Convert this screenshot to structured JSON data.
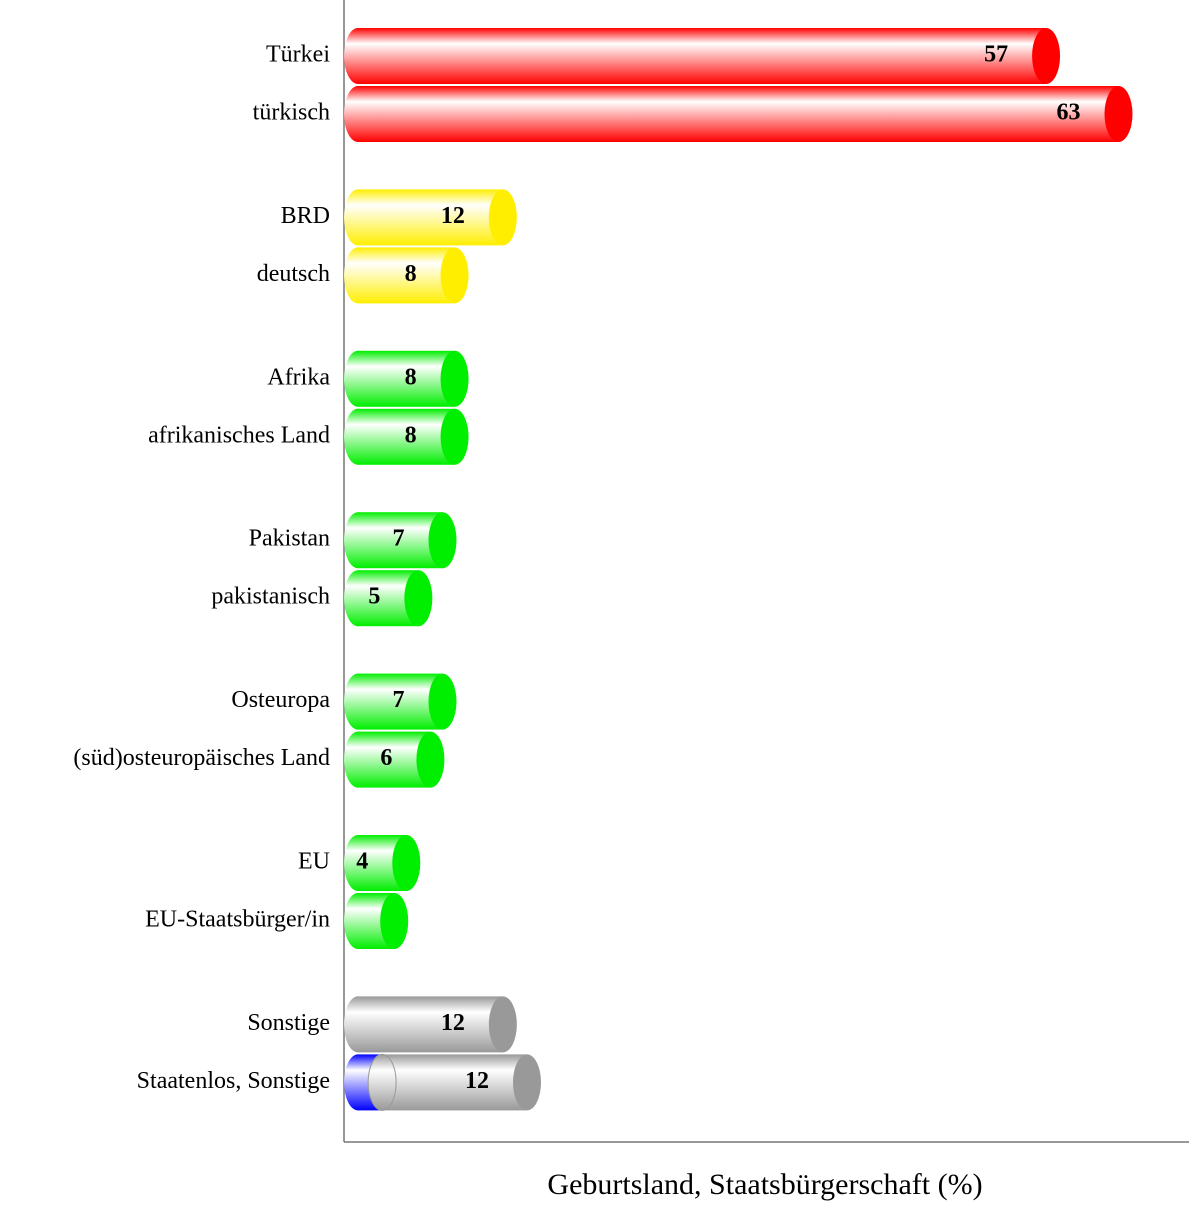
{
  "chart_data": {
    "type": "bar",
    "orientation": "horizontal",
    "x_label": "Geburtsland, Staatsbürgerschaft (%)",
    "categories": [
      "Türkei",
      "türkisch",
      "BRD",
      "deutsch",
      "Afrika",
      "afrikanisches Land",
      "Pakistan",
      "pakistanisch",
      "Osteuropa",
      "(süd)osteuropäisches Land",
      "EU",
      "EU-Staatsbürger/in",
      "Sonstige",
      "Staatenlos, Sonstige"
    ],
    "xlim": [
      0,
      70
    ],
    "series": [
      {
        "color": "#0000ff",
        "values": [
          null,
          null,
          null,
          null,
          null,
          null,
          null,
          null,
          null,
          null,
          null,
          null,
          null,
          2
        ]
      },
      {
        "colors": [
          "#ff0000",
          "#ff0000",
          "#ffee00",
          "#ffee00",
          "#00ee00",
          "#00ee00",
          "#00ee00",
          "#00ee00",
          "#00ee00",
          "#00ee00",
          "#00ee00",
          "#00ee00",
          "#999999",
          "#999999"
        ],
        "values": [
          57,
          63,
          12,
          8,
          8,
          8,
          7,
          5,
          7,
          6,
          4,
          3,
          12,
          12
        ],
        "value_labels": [
          "57",
          "63",
          "12",
          "8",
          "8",
          "8",
          "7",
          "5",
          "7",
          "6",
          "4",
          null,
          "12",
          "12"
        ]
      }
    ]
  }
}
